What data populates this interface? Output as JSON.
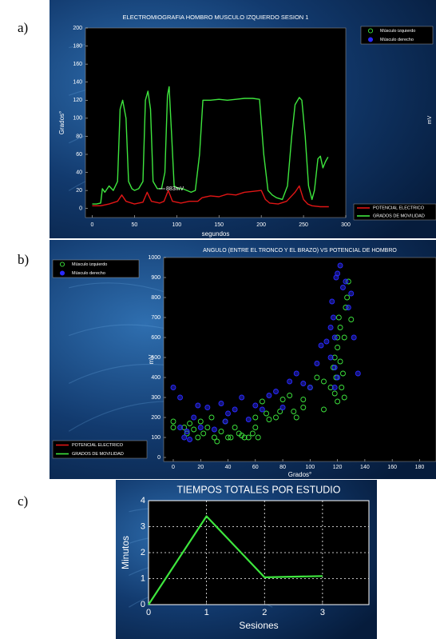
{
  "chart_data": [
    {
      "type": "line",
      "panel_label": "a)",
      "title": "ELECTROMIOGRAFIA  HOMBRO MUSCULO IZQUIERDO SESION 1",
      "xlabel": "segundos",
      "ylabel": "Grados°",
      "y2label": "mV",
      "annotation": "883mV",
      "xlim": [
        -8,
        300
      ],
      "ylim": [
        -10,
        200
      ],
      "xticks": [
        0,
        50,
        100,
        150,
        200,
        250,
        300
      ],
      "yticks": [
        0,
        20,
        40,
        60,
        80,
        100,
        120,
        140,
        160,
        180,
        200
      ],
      "grid": false,
      "extra_legend": [
        {
          "name": "Músculo izquierdo",
          "color": "#3ee63e"
        },
        {
          "name": "Músculo derecho",
          "color": "#2a2aff"
        }
      ],
      "series": [
        {
          "name": "POTENCIAL ELECTRICO",
          "color": "#e01515",
          "x": [
            0,
            10,
            20,
            30,
            35,
            40,
            50,
            60,
            65,
            70,
            80,
            85,
            90,
            95,
            105,
            115,
            125,
            130,
            140,
            150,
            160,
            170,
            180,
            190,
            200,
            205,
            210,
            220,
            230,
            240,
            245,
            250,
            255,
            260,
            270,
            280
          ],
          "values": [
            3,
            3,
            5,
            8,
            15,
            8,
            5,
            7,
            18,
            8,
            6,
            8,
            20,
            8,
            6,
            8,
            8,
            12,
            14,
            13,
            16,
            15,
            18,
            19,
            20,
            10,
            6,
            5,
            8,
            18,
            25,
            10,
            5,
            3,
            2,
            2
          ]
        },
        {
          "name": "GRADOS DE MOVILIDAD",
          "color": "#3ee63e",
          "x": [
            0,
            5,
            10,
            12,
            15,
            20,
            25,
            30,
            33,
            36,
            40,
            43,
            47,
            50,
            55,
            60,
            63,
            66,
            69,
            72,
            77,
            82,
            86,
            89,
            91,
            94,
            97,
            102,
            107,
            112,
            117,
            122,
            127,
            131,
            140,
            150,
            160,
            170,
            180,
            190,
            198,
            203,
            208,
            213,
            218,
            225,
            231,
            236,
            240,
            245,
            248,
            252,
            256,
            260,
            263,
            267,
            270,
            273,
            276,
            279
          ],
          "values": [
            5,
            5,
            6,
            22,
            18,
            25,
            20,
            30,
            110,
            120,
            100,
            30,
            22,
            20,
            22,
            30,
            120,
            130,
            110,
            30,
            22,
            22,
            40,
            125,
            135,
            80,
            25,
            22,
            22,
            20,
            18,
            20,
            60,
            120,
            120,
            121,
            120,
            121,
            122,
            122,
            121,
            60,
            20,
            15,
            12,
            10,
            25,
            80,
            115,
            123,
            120,
            80,
            25,
            10,
            20,
            55,
            58,
            45,
            52,
            57
          ]
        }
      ]
    },
    {
      "type": "scatter",
      "panel_label": "b)",
      "title": "ANGULO (ENTRE EL TRONCO Y EL BRAZO) VS POTENCIAL DE  HOMBRO",
      "xlabel": "Grados°",
      "ylabel": "mV",
      "xlim": [
        -7,
        192
      ],
      "ylim": [
        -20,
        1000
      ],
      "xticks": [
        0,
        20,
        40,
        60,
        80,
        100,
        120,
        140,
        160,
        180
      ],
      "yticks": [
        0,
        100,
        200,
        300,
        400,
        500,
        600,
        700,
        800,
        900,
        1000
      ],
      "grid": false,
      "extra_legend": [
        {
          "name": "POTENCIAL ELECTRICO",
          "color": "#e01515"
        },
        {
          "name": "GRADOS DE MOVILIDAD",
          "color": "#3ee63e"
        }
      ],
      "series": [
        {
          "name": "Músculo izquierdo",
          "color": "#3ee63e",
          "x": [
            0,
            0,
            8,
            10,
            12,
            15,
            18,
            20,
            22,
            25,
            28,
            30,
            32,
            35,
            38,
            40,
            42,
            45,
            48,
            50,
            52,
            55,
            58,
            60,
            62,
            65,
            70,
            75,
            78,
            80,
            85,
            88,
            90,
            95,
            100,
            105,
            110,
            115,
            117,
            118,
            119,
            120,
            120,
            121,
            122,
            122,
            123,
            124,
            125,
            126,
            127,
            128,
            118,
            120,
            130,
            125,
            95,
            110,
            60,
            68
          ],
          "values": [
            180,
            150,
            150,
            120,
            170,
            140,
            100,
            180,
            120,
            150,
            200,
            100,
            80,
            130,
            180,
            100,
            100,
            150,
            120,
            110,
            100,
            100,
            120,
            150,
            100,
            280,
            190,
            200,
            230,
            290,
            310,
            230,
            200,
            290,
            350,
            400,
            380,
            350,
            450,
            500,
            400,
            550,
            600,
            700,
            650,
            480,
            350,
            420,
            600,
            750,
            800,
            880,
            320,
            280,
            690,
            300,
            250,
            240,
            200,
            220
          ]
        },
        {
          "name": "Músculo derecho",
          "color": "#2a2aff",
          "x": [
            5,
            8,
            10,
            12,
            15,
            18,
            20,
            25,
            30,
            35,
            38,
            40,
            45,
            50,
            55,
            60,
            65,
            70,
            75,
            80,
            85,
            90,
            95,
            100,
            105,
            108,
            112,
            115,
            115,
            116,
            117,
            118,
            118,
            119,
            120,
            122,
            124,
            126,
            128,
            130,
            132,
            135,
            118,
            120,
            0,
            5
          ],
          "values": [
            150,
            100,
            130,
            90,
            200,
            260,
            150,
            250,
            140,
            270,
            180,
            220,
            240,
            300,
            190,
            260,
            240,
            310,
            330,
            250,
            380,
            420,
            370,
            350,
            470,
            560,
            580,
            500,
            650,
            780,
            700,
            600,
            450,
            900,
            920,
            960,
            850,
            880,
            750,
            820,
            600,
            420,
            350,
            400,
            350,
            300
          ]
        }
      ]
    },
    {
      "type": "line",
      "panel_label": "c)",
      "title": "TIEMPOS TOTALES POR ESTUDIO",
      "xlabel": "Sesiones",
      "ylabel": "Minutos",
      "xlim": [
        0,
        3.8
      ],
      "ylim": [
        0,
        4
      ],
      "xticks": [
        0,
        1,
        2,
        3
      ],
      "yticks": [
        0,
        1,
        2,
        3,
        4
      ],
      "grid": true,
      "series": [
        {
          "color": "#3ee63e",
          "x": [
            0,
            1,
            2,
            3
          ],
          "values": [
            0,
            3.4,
            1.05,
            1.1
          ]
        }
      ]
    }
  ]
}
